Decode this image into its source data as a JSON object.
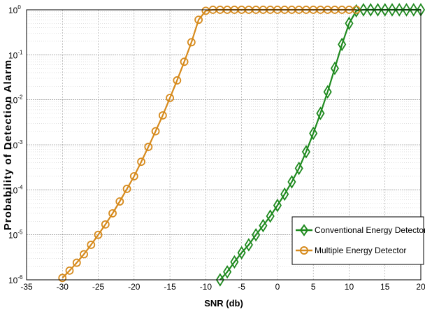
{
  "chart_data": {
    "type": "line",
    "x_label": "SNR (db)",
    "y_label": "Probability of Detection Alarm",
    "y_scale": "log",
    "xlim": [
      -35,
      20
    ],
    "ylim": [
      1e-06,
      1
    ],
    "x_ticks": [
      "-35",
      "-30",
      "-25",
      "-20",
      "-15",
      "-10",
      "-5",
      "0",
      "5",
      "10",
      "15",
      "20"
    ],
    "y_tick_bases": [
      "10",
      "10",
      "10",
      "10",
      "10",
      "10",
      "10"
    ],
    "y_tick_exponents": [
      "-6",
      "-5",
      "-4",
      "-3",
      "-2",
      "-1",
      "0"
    ],
    "y_tick_values": [
      1e-06,
      1e-05,
      0.0001,
      0.001,
      0.01,
      0.1,
      1
    ],
    "grid": true,
    "legend_position": "bottom-right",
    "series": [
      {
        "name": "Conventional Energy Detector",
        "color": "#1f8a1f",
        "marker": "diamond",
        "x": [
          -8,
          -7,
          -6,
          -5,
          -4,
          -3,
          -2,
          -1,
          0,
          1,
          2,
          3,
          4,
          5,
          6,
          7,
          8,
          9,
          10,
          11,
          12,
          13,
          14,
          15,
          16,
          17,
          18,
          19,
          20
        ],
        "y": [
          1e-06,
          1.5e-06,
          2.5e-06,
          4e-06,
          6e-06,
          1e-05,
          1.6e-05,
          2.6e-05,
          4.5e-05,
          8e-05,
          0.00015,
          0.0003,
          0.0007,
          0.0018,
          0.005,
          0.015,
          0.05,
          0.17,
          0.5,
          0.95,
          1,
          1,
          1,
          1,
          1,
          1,
          1,
          1,
          1
        ]
      },
      {
        "name": "Multiple Energy Detector",
        "color": "#d68a1c",
        "marker": "circle",
        "x": [
          -30,
          -29,
          -28,
          -27,
          -26,
          -25,
          -24,
          -23,
          -22,
          -21,
          -20,
          -19,
          -18,
          -17,
          -16,
          -15,
          -14,
          -13,
          -12,
          -11,
          -10,
          -9,
          -8,
          -7,
          -6,
          -5,
          -4,
          -3,
          -2,
          -1,
          0,
          1,
          2,
          3,
          4,
          5,
          6,
          7,
          8,
          9,
          10,
          11
        ],
        "y": [
          1.1e-06,
          1.6e-06,
          2.4e-06,
          3.7e-06,
          6e-06,
          1e-05,
          1.7e-05,
          3e-05,
          5.5e-05,
          0.000105,
          0.0002,
          0.00042,
          0.0009,
          0.002,
          0.0045,
          0.011,
          0.027,
          0.07,
          0.19,
          0.6,
          0.95,
          1,
          1,
          1,
          1,
          1,
          1,
          1,
          1,
          1,
          1,
          1,
          1,
          1,
          1,
          1,
          1,
          1,
          1,
          1,
          1,
          1
        ]
      }
    ]
  }
}
